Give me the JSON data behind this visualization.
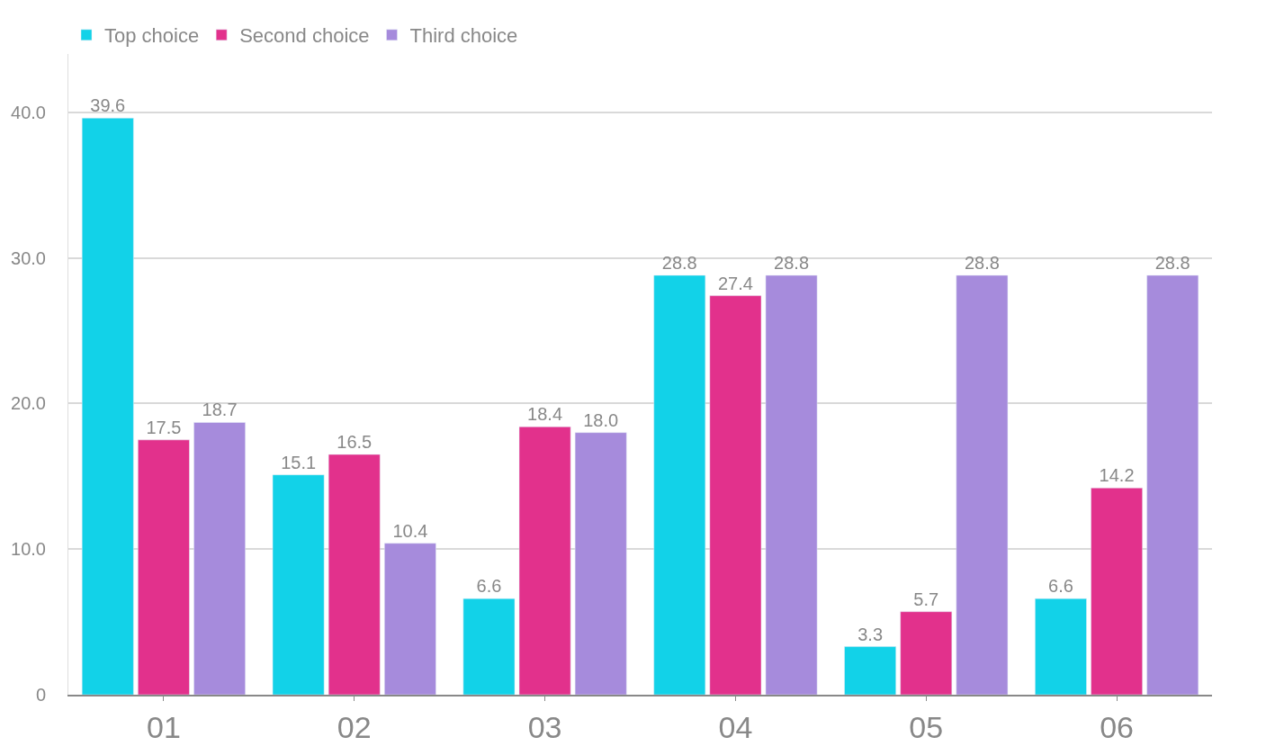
{
  "chart_data": {
    "type": "bar",
    "categories": [
      "01",
      "02",
      "03",
      "04",
      "05",
      "06"
    ],
    "series": [
      {
        "name": "Top choice",
        "color": "#12d2e8",
        "values": [
          39.6,
          15.1,
          6.6,
          28.8,
          3.3,
          6.6
        ],
        "value_labels": [
          "39.6",
          "15.1",
          "6.6",
          "28.8",
          "3.3",
          "6.6"
        ]
      },
      {
        "name": "Second choice",
        "color": "#e2318c",
        "values": [
          17.5,
          16.5,
          18.4,
          27.4,
          5.7,
          14.2
        ],
        "value_labels": [
          "17.5",
          "16.5",
          "18.4",
          "27.4",
          "5.7",
          "14.2"
        ]
      },
      {
        "name": "Third choice",
        "color": "#a68bdc",
        "values": [
          18.7,
          10.4,
          18.0,
          28.8,
          28.8,
          28.8
        ],
        "value_labels": [
          "18.7",
          "10.4",
          "18.0",
          "28.8",
          "28.8",
          "28.8"
        ]
      }
    ],
    "ylim": [
      0,
      44
    ],
    "yticks": [
      {
        "value": 0,
        "label": "0"
      },
      {
        "value": 10,
        "label": "10.0"
      },
      {
        "value": 20,
        "label": "20.0"
      },
      {
        "value": 30,
        "label": "30.0"
      },
      {
        "value": 40,
        "label": "40.0"
      }
    ],
    "grid": "y",
    "legend": "top left"
  }
}
